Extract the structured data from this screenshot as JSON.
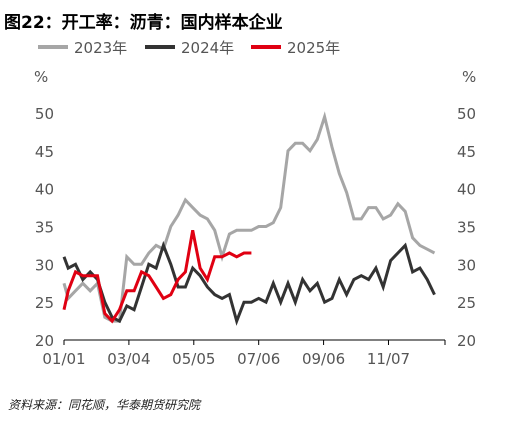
{
  "title": "图22：开工率：沥青：国内样本企业",
  "source": "资料来源：同花顺，华泰期货研究院",
  "chart_data": {
    "type": "line",
    "ylabel_left": "%",
    "ylabel_right": "%",
    "ylim": [
      20,
      50
    ],
    "yticks": [
      20,
      25,
      30,
      35,
      40,
      45,
      50
    ],
    "x_ticks": [
      "01/01",
      "03/04",
      "05/05",
      "07/06",
      "09/06",
      "11/07"
    ],
    "legend_position": "top",
    "series": [
      {
        "name": "2023年",
        "color": "#a6a6a6",
        "points": [
          [
            "01/01",
            27.5
          ],
          [
            "01/05",
            25.5
          ],
          [
            "01/12",
            26.5
          ],
          [
            "01/19",
            27.5
          ],
          [
            "01/26",
            26.5
          ],
          [
            "02/02",
            27.5
          ],
          [
            "02/09",
            23.0
          ],
          [
            "02/16",
            22.5
          ],
          [
            "02/23",
            22.5
          ],
          [
            "03/02",
            31.0
          ],
          [
            "03/09",
            30.0
          ],
          [
            "03/16",
            30.0
          ],
          [
            "03/23",
            31.5
          ],
          [
            "03/30",
            32.5
          ],
          [
            "04/06",
            32.0
          ],
          [
            "04/13",
            35.0
          ],
          [
            "04/20",
            36.5
          ],
          [
            "04/27",
            38.5
          ],
          [
            "05/04",
            37.5
          ],
          [
            "05/11",
            36.5
          ],
          [
            "05/18",
            36.0
          ],
          [
            "05/25",
            34.5
          ],
          [
            "06/01",
            31.0
          ],
          [
            "06/08",
            34.0
          ],
          [
            "06/15",
            34.5
          ],
          [
            "06/22",
            34.5
          ],
          [
            "06/29",
            34.5
          ],
          [
            "07/06",
            35.0
          ],
          [
            "07/13",
            35.0
          ],
          [
            "07/20",
            35.5
          ],
          [
            "07/27",
            37.5
          ],
          [
            "08/03",
            45.0
          ],
          [
            "08/10",
            46.0
          ],
          [
            "08/17",
            46.0
          ],
          [
            "08/24",
            45.0
          ],
          [
            "08/31",
            46.5
          ],
          [
            "09/07",
            49.5
          ],
          [
            "09/14",
            45.5
          ],
          [
            "09/21",
            42.0
          ],
          [
            "09/28",
            39.5
          ],
          [
            "10/05",
            36.0
          ],
          [
            "10/12",
            36.0
          ],
          [
            "10/19",
            37.5
          ],
          [
            "10/26",
            37.5
          ],
          [
            "11/02",
            36.0
          ],
          [
            "11/09",
            36.5
          ],
          [
            "11/16",
            38.0
          ],
          [
            "11/23",
            37.0
          ],
          [
            "11/30",
            33.5
          ],
          [
            "12/07",
            32.5
          ],
          [
            "12/14",
            32.0
          ],
          [
            "12/21",
            31.5
          ]
        ]
      },
      {
        "name": "2024年",
        "color": "#333333",
        "points": [
          [
            "01/01",
            31.0
          ],
          [
            "01/05",
            29.5
          ],
          [
            "01/12",
            30.0
          ],
          [
            "01/19",
            28.0
          ],
          [
            "01/26",
            29.0
          ],
          [
            "02/02",
            28.0
          ],
          [
            "02/09",
            25.0
          ],
          [
            "02/16",
            23.0
          ],
          [
            "02/23",
            22.5
          ],
          [
            "03/02",
            24.5
          ],
          [
            "03/09",
            24.0
          ],
          [
            "03/16",
            27.0
          ],
          [
            "03/23",
            30.0
          ],
          [
            "03/30",
            29.5
          ],
          [
            "04/06",
            32.5
          ],
          [
            "04/13",
            30.0
          ],
          [
            "04/20",
            27.0
          ],
          [
            "04/27",
            27.0
          ],
          [
            "05/04",
            29.5
          ],
          [
            "05/11",
            28.5
          ],
          [
            "05/18",
            27.0
          ],
          [
            "05/25",
            26.0
          ],
          [
            "06/01",
            25.5
          ],
          [
            "06/08",
            26.0
          ],
          [
            "06/15",
            22.5
          ],
          [
            "06/22",
            25.0
          ],
          [
            "06/29",
            25.0
          ],
          [
            "07/06",
            25.5
          ],
          [
            "07/13",
            25.0
          ],
          [
            "07/20",
            27.5
          ],
          [
            "07/27",
            25.0
          ],
          [
            "08/03",
            27.5
          ],
          [
            "08/10",
            25.0
          ],
          [
            "08/17",
            28.0
          ],
          [
            "08/24",
            26.5
          ],
          [
            "08/31",
            27.5
          ],
          [
            "09/07",
            25.0
          ],
          [
            "09/14",
            25.5
          ],
          [
            "09/21",
            28.0
          ],
          [
            "09/28",
            26.0
          ],
          [
            "10/05",
            28.0
          ],
          [
            "10/12",
            28.5
          ],
          [
            "10/19",
            28.0
          ],
          [
            "10/26",
            29.5
          ],
          [
            "11/02",
            27.0
          ],
          [
            "11/09",
            30.5
          ],
          [
            "11/16",
            31.5
          ],
          [
            "11/23",
            32.5
          ],
          [
            "11/30",
            29.0
          ],
          [
            "12/07",
            29.5
          ],
          [
            "12/14",
            28.0
          ],
          [
            "12/21",
            26.0
          ]
        ]
      },
      {
        "name": "2025年",
        "color": "#e00012",
        "points": [
          [
            "01/01",
            24.0
          ],
          [
            "01/05",
            26.5
          ],
          [
            "01/12",
            29.0
          ],
          [
            "01/19",
            28.5
          ],
          [
            "01/26",
            28.5
          ],
          [
            "02/02",
            28.5
          ],
          [
            "02/09",
            23.5
          ],
          [
            "02/16",
            22.5
          ],
          [
            "02/23",
            24.0
          ],
          [
            "03/02",
            26.5
          ],
          [
            "03/09",
            26.5
          ],
          [
            "03/16",
            29.0
          ],
          [
            "03/23",
            28.5
          ],
          [
            "03/30",
            27.0
          ],
          [
            "04/06",
            25.5
          ],
          [
            "04/13",
            26.0
          ],
          [
            "04/20",
            28.0
          ],
          [
            "04/27",
            29.0
          ],
          [
            "05/04",
            34.5
          ],
          [
            "05/11",
            29.5
          ],
          [
            "05/18",
            28.0
          ],
          [
            "05/25",
            31.0
          ],
          [
            "06/01",
            31.0
          ],
          [
            "06/08",
            31.5
          ],
          [
            "06/15",
            31.0
          ],
          [
            "06/22",
            31.5
          ],
          [
            "06/29",
            31.5
          ]
        ]
      }
    ]
  }
}
